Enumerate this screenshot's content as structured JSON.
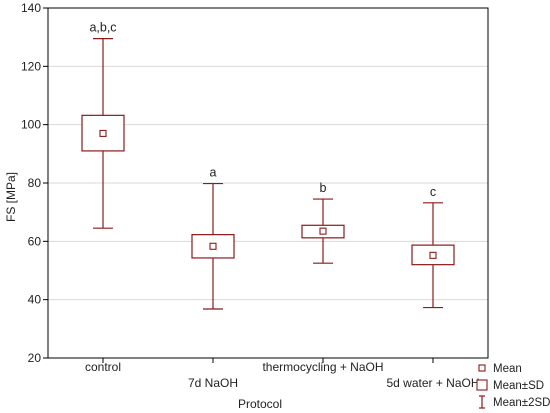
{
  "colors": {
    "series": "#8b1a1a",
    "grid": "#d9d9d9",
    "axis": "#000000"
  },
  "chart_data": {
    "type": "boxplot",
    "xlabel": "Protocol",
    "ylabel": "FS [MPa]",
    "ylim": [
      20,
      140
    ],
    "yticks": [
      20,
      40,
      60,
      80,
      100,
      120,
      140
    ],
    "grid": true,
    "legend_position": "bottom-right",
    "categories": [
      "control",
      "7d NaOH",
      "thermocycling + NaOH",
      "5d water + NaOH"
    ],
    "series": [
      {
        "stats": [
          {
            "mean": 97.0,
            "sd_low": 91.0,
            "sd_high": 103.2,
            "sd2_low": 64.5,
            "sd2_high": 129.5,
            "label": "a,b,c"
          },
          {
            "mean": 58.3,
            "sd_low": 54.3,
            "sd_high": 62.3,
            "sd2_low": 36.8,
            "sd2_high": 79.8,
            "label": "a"
          },
          {
            "mean": 63.5,
            "sd_low": 61.2,
            "sd_high": 65.5,
            "sd2_low": 52.5,
            "sd2_high": 74.5,
            "label": "b"
          },
          {
            "mean": 55.2,
            "sd_low": 52.0,
            "sd_high": 58.7,
            "sd2_low": 37.3,
            "sd2_high": 73.2,
            "label": "c"
          }
        ]
      }
    ],
    "legend": [
      "Mean",
      "Mean±SD",
      "Mean±2SD"
    ]
  }
}
